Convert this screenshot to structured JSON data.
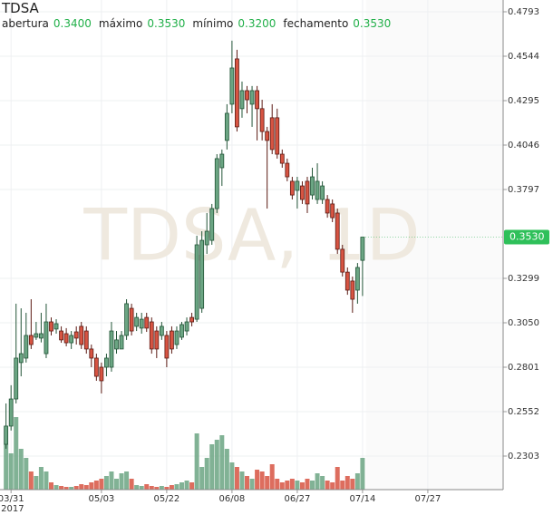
{
  "chart_data": {
    "type": "candlestick",
    "title": "TDSA",
    "watermark": "TDSA, 1D",
    "header": [
      {
        "label": "abertura",
        "value": "0.3400"
      },
      {
        "label": "máximo",
        "value": "0.3530"
      },
      {
        "label": "mínimo",
        "value": "0.3200"
      },
      {
        "label": "fechamento",
        "value": "0.3530"
      }
    ],
    "last_price": {
      "value": 0.353,
      "label": "0.3530"
    },
    "ylim": [
      0.2115,
      0.4859
    ],
    "yticks": [
      0.4793,
      0.4544,
      0.4295,
      0.4046,
      0.3797,
      0.3299,
      {
        "value": 0.305,
        "label": "0.3050"
      },
      0.2801,
      0.2552,
      0.2303
    ],
    "xlim": [
      -1.2,
      99
    ],
    "xticks": [
      {
        "value": 1,
        "label": "03/31"
      },
      {
        "value": 19,
        "label": "05/03"
      },
      {
        "value": 32,
        "label": "05/22"
      },
      {
        "value": 45,
        "label": "06/08"
      },
      {
        "value": 58,
        "label": "06/27"
      },
      {
        "value": 71,
        "label": "07/14"
      },
      {
        "value": 84,
        "label": "07/27"
      }
    ],
    "year_label": "2017",
    "up_color": "#6ba583",
    "down_color": "#d75442",
    "volume_lim": [
      0,
      100
    ],
    "grid": true,
    "open": [
      0.2369,
      0.2471,
      0.2623,
      0.2827,
      0.2852,
      0.2979,
      0.2969,
      0.2964,
      0.2877,
      0.3055,
      0.3015,
      0.3004,
      0.2989,
      0.2938,
      0.2999,
      0.303,
      0.3004,
      0.2903,
      0.2852,
      0.2801,
      0.2801,
      0.2801,
      0.2903,
      0.2903,
      0.2979,
      0.3131,
      0.303,
      0.302,
      0.308,
      0.3055,
      0.3004,
      0.2979,
      0.2979,
      0.3004,
      0.2928,
      0.2969,
      0.3004,
      0.308,
      0.307,
      0.3131,
      0.3487,
      0.3512,
      0.369,
      0.3919,
      0.4072,
      0.4275,
      0.4529,
      0.425,
      0.4351,
      0.4275,
      0.4351,
      0.425,
      0.4122,
      0.4199,
      0.4199,
      0.3995,
      0.3944,
      0.3843,
      0.3792,
      0.3817,
      0.3843,
      0.3766,
      0.3741,
      0.3741,
      0.3741,
      0.3716,
      0.3665,
      0.3462,
      0.3334,
      0.3284,
      0.3233,
      0.34
    ],
    "high": [
      0.2598,
      0.27,
      0.3157,
      0.3131,
      0.3106,
      0.3182,
      0.3055,
      0.3106,
      0.3157,
      0.308,
      0.307,
      0.303,
      0.302,
      0.3004,
      0.303,
      0.3055,
      0.303,
      0.2928,
      0.2877,
      0.2827,
      0.2877,
      0.3055,
      0.3004,
      0.3004,
      0.3182,
      0.3157,
      0.3106,
      0.3106,
      0.3106,
      0.308,
      0.303,
      0.3055,
      0.3004,
      0.303,
      0.303,
      0.3055,
      0.308,
      0.3106,
      0.3538,
      0.3563,
      0.3665,
      0.3716,
      0.3995,
      0.4021,
      0.4275,
      0.4631,
      0.458,
      0.4402,
      0.4377,
      0.4377,
      0.4377,
      0.43,
      0.4148,
      0.4275,
      0.425,
      0.4021,
      0.397,
      0.3868,
      0.3868,
      0.3843,
      0.3868,
      0.3919,
      0.3944,
      0.3843,
      0.3766,
      0.3741,
      0.369,
      0.3487,
      0.336,
      0.3309,
      0.3385,
      0.353
    ],
    "low": [
      0.2344,
      0.2446,
      0.2598,
      0.275,
      0.2827,
      0.2903,
      0.2954,
      0.294,
      0.2852,
      0.2979,
      0.2989,
      0.2938,
      0.2918,
      0.2903,
      0.2928,
      0.2903,
      0.2877,
      0.2801,
      0.2725,
      0.2654,
      0.275,
      0.2776,
      0.2877,
      0.2903,
      0.2954,
      0.2979,
      0.3004,
      0.2989,
      0.2999,
      0.2877,
      0.2852,
      0.2954,
      0.2801,
      0.2877,
      0.2903,
      0.2954,
      0.2979,
      0.303,
      0.3055,
      0.3106,
      0.3436,
      0.3487,
      0.3665,
      0.3817,
      0.4021,
      0.4224,
      0.4122,
      0.4199,
      0.4224,
      0.4148,
      0.4072,
      0.4072,
      0.369,
      0.3995,
      0.397,
      0.3919,
      0.3843,
      0.3741,
      0.369,
      0.3716,
      0.3665,
      0.3741,
      0.3716,
      0.3716,
      0.3639,
      0.3614,
      0.3436,
      0.3309,
      0.3207,
      0.3106,
      0.3157,
      0.32
    ],
    "close": [
      0.2471,
      0.2623,
      0.2852,
      0.2877,
      0.2979,
      0.2928,
      0.2989,
      0.2989,
      0.3055,
      0.3004,
      0.3045,
      0.2954,
      0.2938,
      0.2979,
      0.2964,
      0.2928,
      0.2903,
      0.2852,
      0.275,
      0.2725,
      0.2852,
      0.3004,
      0.2954,
      0.2979,
      0.3157,
      0.3004,
      0.308,
      0.307,
      0.302,
      0.2903,
      0.2903,
      0.303,
      0.2852,
      0.2903,
      0.3004,
      0.304,
      0.3055,
      0.3055,
      0.3487,
      0.3512,
      0.3563,
      0.369,
      0.397,
      0.3995,
      0.4224,
      0.4478,
      0.4148,
      0.4351,
      0.43,
      0.4351,
      0.425,
      0.4122,
      0.4072,
      0.4021,
      0.3995,
      0.3944,
      0.3868,
      0.3766,
      0.3843,
      0.3741,
      0.3716,
      0.3868,
      0.3843,
      0.3817,
      0.3665,
      0.3639,
      0.3462,
      0.3334,
      0.3233,
      0.3182,
      0.336,
      0.353
    ],
    "volume": [
      50,
      40,
      80,
      45,
      35,
      20,
      15,
      25,
      20,
      8,
      5,
      4,
      3,
      3,
      4,
      6,
      5,
      8,
      10,
      12,
      15,
      20,
      12,
      18,
      20,
      12,
      5,
      4,
      6,
      4,
      3,
      4,
      3,
      5,
      6,
      8,
      10,
      8,
      62,
      25,
      35,
      50,
      55,
      60,
      45,
      30,
      25,
      20,
      15,
      12,
      22,
      20,
      15,
      28,
      12,
      8,
      10,
      12,
      10,
      8,
      12,
      10,
      18,
      15,
      10,
      8,
      25,
      10,
      15,
      12,
      18,
      35
    ]
  }
}
